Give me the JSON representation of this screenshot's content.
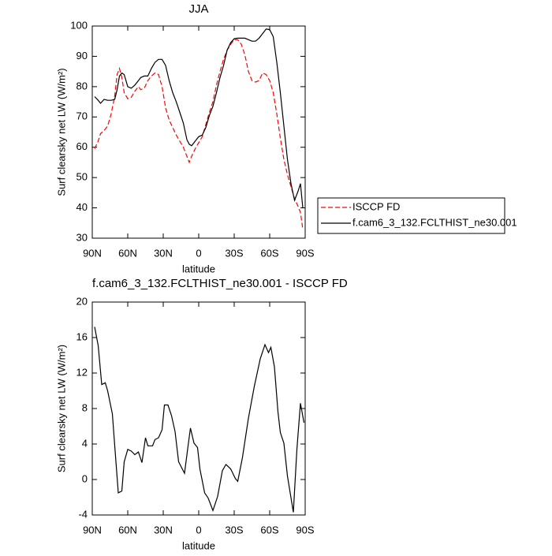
{
  "chart_data": [
    {
      "type": "line",
      "title": "JJA",
      "xlabel": "latitude",
      "ylabel": "Surf clearsky net LW (W/m²)",
      "x": [
        88,
        85,
        83,
        80,
        77,
        74,
        71,
        69,
        67,
        65,
        63,
        60,
        57,
        54,
        51,
        49,
        46,
        43,
        40,
        37,
        34,
        31,
        28,
        25,
        22,
        19,
        16,
        13,
        10,
        8,
        6,
        3,
        0,
        -3,
        -6,
        -9,
        -12,
        -15,
        -18,
        -21,
        -24,
        -27,
        -30,
        -33,
        -36,
        -39,
        -42,
        -45,
        -48,
        -51,
        -54,
        -57,
        -60,
        -63,
        -66,
        -69,
        -72,
        -75,
        -78,
        -81,
        -84,
        -86,
        -88
      ],
      "series": [
        {
          "name": "ISCCP FD",
          "color": "#ff0000",
          "dash": "dashed",
          "values": [
            59.5,
            62,
            64.5,
            65.5,
            67,
            71,
            77,
            84,
            86,
            83,
            78,
            76,
            76.5,
            78.5,
            80,
            79,
            79.5,
            82,
            83.5,
            84.5,
            84,
            80,
            73,
            69,
            66.5,
            64,
            62,
            60,
            57,
            55,
            57,
            59.5,
            61.5,
            63.5,
            67.5,
            71.5,
            75,
            80.5,
            85,
            89,
            92,
            94,
            95.5,
            95.5,
            94,
            90.5,
            85,
            82,
            81.5,
            82,
            84.5,
            84,
            82,
            78,
            71,
            63,
            56,
            51,
            47,
            43,
            40.5,
            38.5,
            33
          ]
        },
        {
          "name": "f.cam6_3_132.FCLTHIST_ne30.001",
          "color": "#000000",
          "dash": "solid",
          "values": [
            76.7,
            75.5,
            74.5,
            75.8,
            75.5,
            75.5,
            75.8,
            79,
            83.5,
            84.5,
            84,
            80,
            79.5,
            80.5,
            82,
            83,
            83.5,
            83.5,
            86,
            88,
            89,
            89,
            87,
            82,
            78,
            75,
            71.5,
            68,
            62.5,
            61,
            60.5,
            62,
            63.5,
            64,
            66.5,
            70.5,
            73.5,
            78,
            83,
            87,
            92,
            94.5,
            95.8,
            96,
            96,
            96,
            95.5,
            95,
            95,
            96,
            97.5,
            99,
            98.8,
            96.5,
            88,
            78,
            67,
            56,
            48,
            42.5,
            45.5,
            48,
            40
          ]
        }
      ],
      "xlim": [
        90,
        -90
      ],
      "xticks": [
        {
          "value": 90,
          "label": "90N"
        },
        {
          "value": 60,
          "label": "60N"
        },
        {
          "value": 30,
          "label": "30N"
        },
        0,
        {
          "value": -30,
          "label": "30S"
        },
        {
          "value": -60,
          "label": "60S"
        },
        {
          "value": -90,
          "label": "90S"
        }
      ],
      "ylim": [
        30,
        100
      ],
      "yticks": [
        30,
        40,
        50,
        60,
        70,
        80,
        90,
        100
      ],
      "legend": "right"
    },
    {
      "type": "line",
      "title": "f.cam6_3_132.FCLTHIST_ne30.001 - ISCCP FD",
      "xlabel": "latitude",
      "ylabel": "Surf clearsky net LW (W/m²)",
      "x": [
        88,
        85,
        82,
        79,
        77,
        73,
        71,
        68,
        65,
        63,
        60,
        57,
        54,
        51,
        48,
        45,
        43,
        39,
        37,
        34,
        31,
        29,
        26,
        23,
        20,
        17,
        12,
        9,
        7,
        4,
        1,
        -1,
        -5,
        -8,
        -12,
        -16,
        -20,
        -23,
        -27,
        -31,
        -33,
        -37,
        -42,
        -47,
        -52,
        -56,
        -59,
        -61,
        -64,
        -67,
        -69,
        -72,
        -75,
        -80,
        -83,
        -86,
        -89
      ],
      "series": [
        {
          "name": "f.cam6_3_132.FCLTHIST_ne30.001 - ISCCP FD",
          "color": "#000000",
          "dash": "solid",
          "values": [
            17.2,
            15.1,
            10.7,
            10.9,
            10,
            7.4,
            3.8,
            -1.5,
            -1.3,
            2,
            3.4,
            3.2,
            2.8,
            3.1,
            1.9,
            4.7,
            3.8,
            3.8,
            4.5,
            4.7,
            5.6,
            8.4,
            8.4,
            7.2,
            5.4,
            2,
            0.7,
            3.8,
            5.8,
            4.1,
            3.6,
            1.2,
            -1.5,
            -2.1,
            -3.5,
            -1.9,
            1,
            1.7,
            1.2,
            0.1,
            -0.2,
            2.5,
            6.9,
            10.5,
            13.6,
            15.2,
            14.3,
            14.9,
            12.7,
            7.6,
            5.3,
            4.1,
            0.4,
            -3.7,
            3.4,
            8.6,
            6.4
          ]
        }
      ],
      "xlim": [
        90,
        -90
      ],
      "xticks": [
        {
          "value": 90,
          "label": "90N"
        },
        {
          "value": 60,
          "label": "60N"
        },
        {
          "value": 30,
          "label": "30N"
        },
        0,
        {
          "value": -30,
          "label": "30S"
        },
        {
          "value": -60,
          "label": "60S"
        },
        {
          "value": -90,
          "label": "90S"
        }
      ],
      "ylim": [
        -4,
        20
      ],
      "yticks": [
        -4,
        0,
        4,
        8,
        12,
        16,
        20
      ]
    }
  ]
}
